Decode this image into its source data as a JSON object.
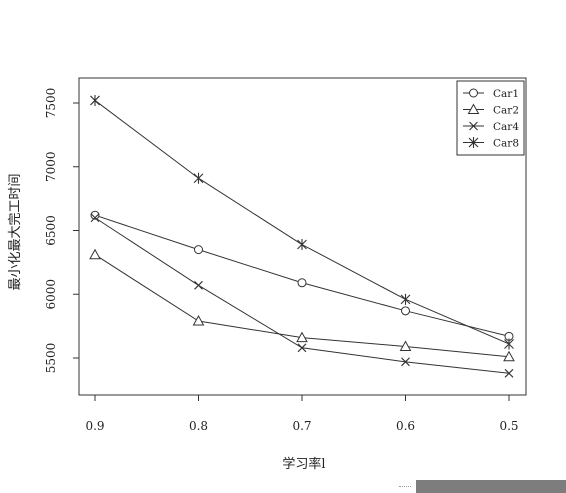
{
  "chart_data": {
    "type": "line",
    "title": "",
    "xlabel": "学习率l",
    "ylabel": "最小化最大完工时间",
    "x": [
      0.9,
      0.8,
      0.7,
      0.6,
      0.5
    ],
    "x_tick_labels": [
      "0.9",
      "0.8",
      "0.7",
      "0.6",
      "0.5"
    ],
    "x_reversed": true,
    "xlim": [
      0.9,
      0.5
    ],
    "ylim": [
      5300,
      7700
    ],
    "y_ticks": [
      5500,
      6000,
      6500,
      7000,
      7500
    ],
    "y_tick_labels": [
      "5500",
      "6000",
      "6500",
      "7000",
      "7500"
    ],
    "grid": false,
    "legend_position": "top-right",
    "series": [
      {
        "name": "Car1",
        "marker": "circle",
        "values": [
          6620,
          6350,
          6090,
          5870,
          5670
        ]
      },
      {
        "name": "Car2",
        "marker": "triangle",
        "values": [
          6310,
          5790,
          5660,
          5590,
          5510
        ]
      },
      {
        "name": "Car4",
        "marker": "x",
        "values": [
          6600,
          6070,
          5580,
          5470,
          5380
        ]
      },
      {
        "name": "Car8",
        "marker": "star",
        "values": [
          7520,
          6910,
          6390,
          5960,
          5610
        ]
      }
    ]
  }
}
